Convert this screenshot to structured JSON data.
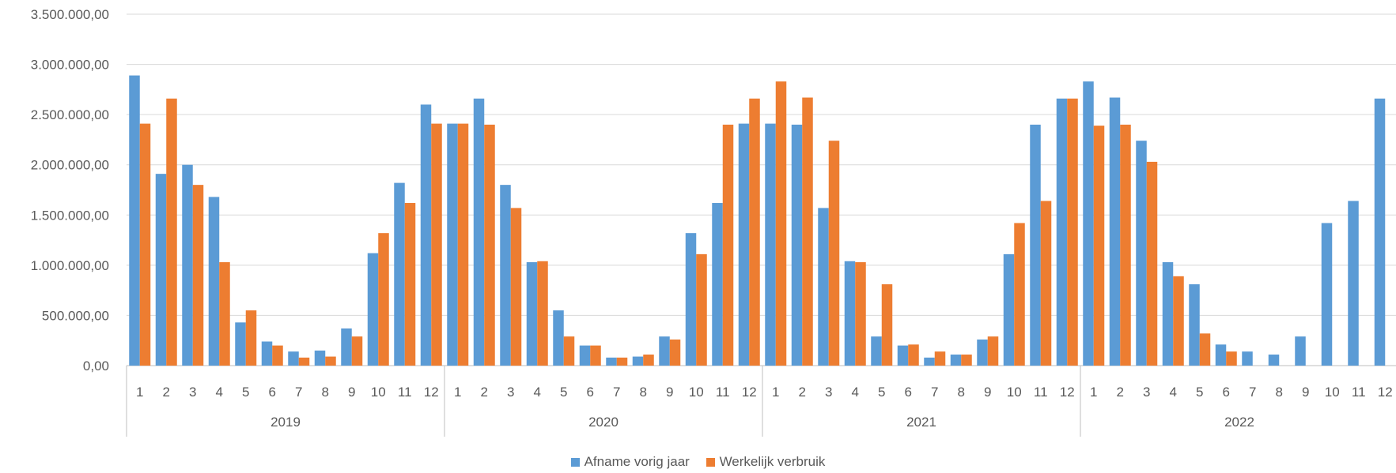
{
  "chart_data": {
    "type": "bar",
    "title": "",
    "xlabel": "",
    "ylabel": "",
    "ylim": [
      0,
      3500000
    ],
    "yticks": [
      "0,00",
      "500.000,00",
      "1.000.000,00",
      "1.500.000,00",
      "2.000.000,00",
      "2.500.000,00",
      "3.000.000,00",
      "3.500.000,00"
    ],
    "grid": true,
    "legend_position": "bottom",
    "years": [
      "2019",
      "2020",
      "2021",
      "2022"
    ],
    "months": [
      "1",
      "2",
      "3",
      "4",
      "5",
      "6",
      "7",
      "8",
      "9",
      "10",
      "11",
      "12"
    ],
    "series": [
      {
        "name": "Afname vorig jaar",
        "color": "#5b9bd5",
        "values": [
          2890000,
          1910000,
          2000000,
          1680000,
          430000,
          240000,
          140000,
          150000,
          370000,
          1120000,
          1820000,
          2600000,
          2410000,
          2660000,
          1800000,
          1030000,
          550000,
          200000,
          80000,
          90000,
          290000,
          1320000,
          1620000,
          2410000,
          2410000,
          2400000,
          1570000,
          1040000,
          290000,
          200000,
          80000,
          110000,
          260000,
          1110000,
          2400000,
          2660000,
          2830000,
          2670000,
          2240000,
          1030000,
          810000,
          210000,
          140000,
          110000,
          290000,
          1420000,
          1640000,
          2660000
        ]
      },
      {
        "name": "Werkelijk verbruik",
        "color": "#ed7d31",
        "values": [
          2410000,
          2660000,
          1800000,
          1030000,
          550000,
          200000,
          80000,
          90000,
          290000,
          1320000,
          1620000,
          2410000,
          2410000,
          2400000,
          1570000,
          1040000,
          290000,
          200000,
          80000,
          110000,
          260000,
          1110000,
          2400000,
          2660000,
          2830000,
          2670000,
          2240000,
          1030000,
          810000,
          210000,
          140000,
          110000,
          290000,
          1420000,
          1640000,
          2660000,
          2390000,
          2400000,
          2030000,
          890000,
          320000,
          140000,
          null,
          null,
          null,
          null,
          null,
          null
        ]
      }
    ]
  }
}
